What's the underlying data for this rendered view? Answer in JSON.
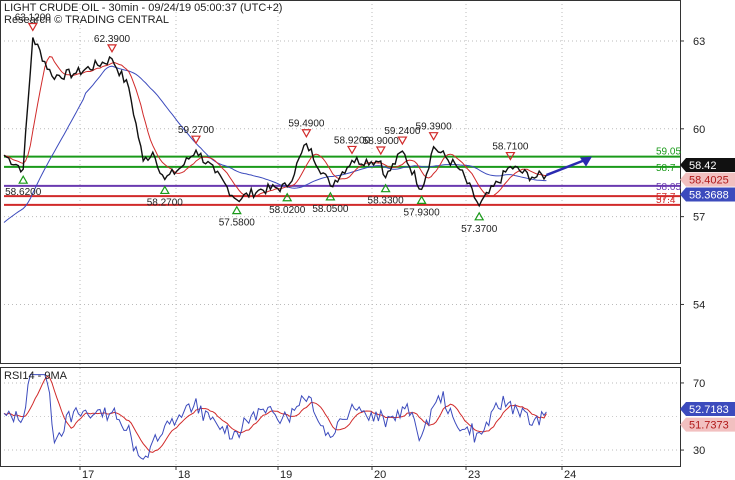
{
  "header": {
    "title": "LIGHT CRUDE OIL - 30min - 09/24/19 05:00:37 (UTC+2)",
    "subtitle": "Research © TRADING CENTRAL"
  },
  "chart_data": [
    {
      "type": "line",
      "panel": "price",
      "x_labels": [
        "17",
        "18",
        "19",
        "20",
        "23",
        "24"
      ],
      "y_ticks": [
        54,
        57,
        60,
        63
      ],
      "ylim": [
        52.0,
        64.4
      ],
      "grid": true,
      "annotations": [
        {
          "text": "63.1200",
          "kind": "peak",
          "value": 63.12,
          "bar": 12
        },
        {
          "text": "62.3900",
          "kind": "peak",
          "value": 62.39,
          "bar": 45
        },
        {
          "text": "59.2700",
          "kind": "peak",
          "value": 59.27,
          "bar": 80
        },
        {
          "text": "59.4900",
          "kind": "peak",
          "value": 59.49,
          "bar": 126
        },
        {
          "text": "58.9200",
          "kind": "peak",
          "value": 58.92,
          "bar": 145
        },
        {
          "text": "58.9000",
          "kind": "peak",
          "value": 58.9,
          "bar": 157
        },
        {
          "text": "59.2400",
          "kind": "peak",
          "value": 59.24,
          "bar": 166
        },
        {
          "text": "59.3900",
          "kind": "peak",
          "value": 59.39,
          "bar": 179
        },
        {
          "text": "58.7100",
          "kind": "peak",
          "value": 58.71,
          "bar": 211
        },
        {
          "text": "58.6200",
          "kind": "trough",
          "value": 58.62,
          "bar": 8
        },
        {
          "text": "58.2700",
          "kind": "trough",
          "value": 58.27,
          "bar": 67
        },
        {
          "text": "57.5800",
          "kind": "trough",
          "value": 57.58,
          "bar": 97
        },
        {
          "text": "58.0200",
          "kind": "trough",
          "value": 58.02,
          "bar": 118
        },
        {
          "text": "58.0500",
          "kind": "trough",
          "value": 58.05,
          "bar": 136
        },
        {
          "text": "58.3300",
          "kind": "trough",
          "value": 58.33,
          "bar": 159
        },
        {
          "text": "57.9300",
          "kind": "trough",
          "value": 57.93,
          "bar": 174
        },
        {
          "text": "57.3700",
          "kind": "trough",
          "value": 57.37,
          "bar": 198
        }
      ],
      "levels": [
        {
          "value": 59.05,
          "color": "#1a9a1a",
          "text": "59.05"
        },
        {
          "value": 58.7,
          "color": "#1a9a1a",
          "text": "58.7"
        },
        {
          "value": 58.05,
          "color": "#6a3ab0",
          "text": "58.05"
        },
        {
          "value": 57.7,
          "color": "#d12a2a",
          "text": "57.7"
        },
        {
          "value": 57.4,
          "color": "#d12a2a",
          "text": "57.4"
        }
      ],
      "tags": [
        {
          "text": "58.42",
          "value": 58.42,
          "bg": "#111111",
          "fg": "#ffffff"
        },
        {
          "text": "58.4025",
          "value": 58.4025,
          "bg": "#f2c0c0",
          "fg": "#b01818"
        },
        {
          "text": "58.3688",
          "value": 58.3688,
          "bg": "#3c4bbd",
          "fg": "#ffffff"
        }
      ],
      "colors": {
        "price": "#111111",
        "ma_fast": "#d12a2a",
        "ma_slow": "#3c4bbd",
        "arrow": "#2a2ab0"
      }
    },
    {
      "type": "line",
      "panel": "rsi",
      "label": "RSI14 - 9MA",
      "y_ticks": [
        30,
        70
      ],
      "ylim": [
        20.5,
        79.5
      ],
      "tags": [
        {
          "text": "52.7183",
          "value": 52.7183,
          "bg": "#3c4bbd",
          "fg": "#ffffff"
        },
        {
          "text": "51.7373",
          "value": 51.7373,
          "bg": "#f2c0c0",
          "fg": "#b01818"
        }
      ],
      "colors": {
        "rsi": "#3c4bbd",
        "ma": "#d12a2a"
      }
    }
  ]
}
